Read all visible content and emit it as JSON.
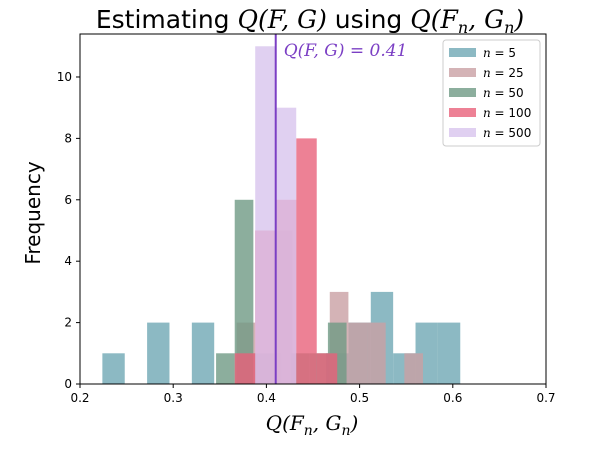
{
  "chart_data": {
    "type": "histogram",
    "title": "Estimating Q(F, G) using Q(F_n, G_n)",
    "title_parts": {
      "prefix": "Estimating ",
      "lhs": "Q(F, G)",
      "middle": " using ",
      "rhs": "Q(F",
      "rhs_sub1": "n",
      "rhs_mid": ", G",
      "rhs_sub2": "n",
      "rhs_end": ")"
    },
    "xlabel": {
      "main": "Q(F",
      "sub1": "n",
      "mid": ", G",
      "sub2": "n",
      "end": ")"
    },
    "ylabel": "Frequency",
    "xlim": [
      0.2,
      0.7
    ],
    "ylim": [
      0,
      11.4
    ],
    "xticks": [
      0.2,
      0.3,
      0.4,
      0.5,
      0.6,
      0.7
    ],
    "xtick_labels": [
      "0.2",
      "0.3",
      "0.4",
      "0.5",
      "0.6",
      "0.7"
    ],
    "yticks": [
      0,
      2,
      4,
      6,
      8,
      10
    ],
    "ytick_labels": [
      "0",
      "2",
      "4",
      "6",
      "8",
      "10"
    ],
    "reference_line": {
      "x": 0.41,
      "label": "Q(F, G) = 0.41",
      "color": "#7b3fc4"
    },
    "legend_position": "top-right",
    "series": [
      {
        "name": "n = 5",
        "legend_n": "5",
        "color": "#6fa8b4",
        "opacity": 0.8,
        "bins": [
          [
            0.224,
            0.248,
            1
          ],
          [
            0.272,
            0.296,
            2
          ],
          [
            0.32,
            0.344,
            2
          ],
          [
            0.368,
            0.392,
            1
          ],
          [
            0.392,
            0.416,
            1
          ],
          [
            0.464,
            0.488,
            1
          ],
          [
            0.488,
            0.512,
            2
          ],
          [
            0.512,
            0.536,
            3
          ],
          [
            0.536,
            0.56,
            1
          ],
          [
            0.56,
            0.584,
            2
          ],
          [
            0.584,
            0.608,
            2
          ]
        ]
      },
      {
        "name": "n = 25",
        "legend_n": "25",
        "color": "#c9a0a4",
        "opacity": 0.8,
        "bins": [
          [
            0.368,
            0.388,
            2
          ],
          [
            0.408,
            0.428,
            5
          ],
          [
            0.468,
            0.488,
            3
          ],
          [
            0.488,
            0.508,
            2
          ],
          [
            0.508,
            0.528,
            2
          ],
          [
            0.548,
            0.568,
            1
          ]
        ]
      },
      {
        "name": "n = 50",
        "legend_n": "50",
        "color": "#6f9a84",
        "opacity": 0.8,
        "bins": [
          [
            0.346,
            0.366,
            1
          ],
          [
            0.366,
            0.386,
            6
          ],
          [
            0.426,
            0.446,
            1
          ],
          [
            0.446,
            0.466,
            1
          ],
          [
            0.466,
            0.486,
            2
          ]
        ]
      },
      {
        "name": "n = 100",
        "legend_n": "100",
        "color": "#e9627a",
        "opacity": 0.8,
        "bins": [
          [
            0.366,
            0.388,
            1
          ],
          [
            0.388,
            0.41,
            5
          ],
          [
            0.41,
            0.432,
            6
          ],
          [
            0.432,
            0.454,
            8
          ],
          [
            0.454,
            0.476,
            1
          ]
        ]
      },
      {
        "name": "n = 500",
        "legend_n": "500",
        "color": "#d8c4ee",
        "opacity": 0.8,
        "bins": [
          [
            0.388,
            0.41,
            11
          ],
          [
            0.41,
            0.432,
            9
          ]
        ]
      }
    ]
  }
}
